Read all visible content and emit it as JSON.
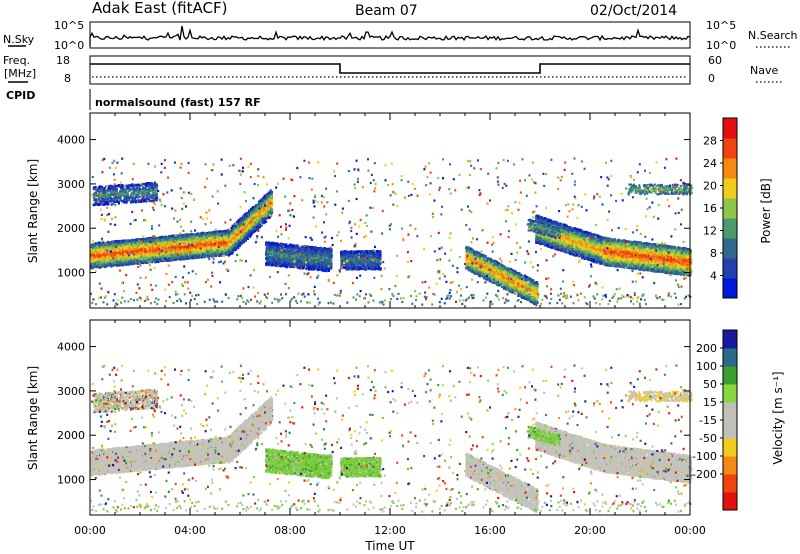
{
  "header": {
    "station": "Adak East (fitACF)",
    "beam": "Beam 07",
    "date": "02/Oct/2014"
  },
  "top_panels": {
    "nsky_label": "N.Sky",
    "nsky_ticks": [
      "10^5",
      "10^0"
    ],
    "nsearch_label": "N.Search",
    "nsearch_ticks": [
      "10^5",
      "10^0"
    ],
    "freq_label": "Freq.",
    "freq_unit": "[MHz]",
    "freq_ticks": [
      "18",
      "8"
    ],
    "nave_label": "Nave",
    "nave_ticks": [
      "60",
      "0"
    ],
    "cpid_label": "CPID",
    "cpid_text": "normalsound (fast) 157 RF"
  },
  "colors": {
    "power": [
      "#0018d8",
      "#2340b0",
      "#2f6a8e",
      "#4f9a6a",
      "#8fc64a",
      "#f2cc1a",
      "#f48a12",
      "#f04410",
      "#e41010"
    ],
    "velocity": [
      "#e41010",
      "#f04410",
      "#f48a12",
      "#f2cc1a",
      "#c0c0b8",
      "#c0c0b8",
      "#8ad640",
      "#3aa030",
      "#2a6a8a",
      "#1a1aa0"
    ]
  },
  "chart_data": [
    {
      "type": "heatmap",
      "title": "Power",
      "xlabel": "",
      "ylabel": "Slant Range [km]",
      "x_ticks": [
        "00:00",
        "04:00",
        "08:00",
        "12:00",
        "16:00",
        "20:00",
        "00:00"
      ],
      "y_ticks": [
        1000,
        2000,
        3000,
        4000
      ],
      "xlim": [
        0,
        24
      ],
      "ylim": [
        200,
        4600
      ],
      "colorbar": {
        "label": "Power [dB]",
        "ticks": [
          4,
          8,
          12,
          16,
          20,
          24,
          28
        ],
        "range": [
          0,
          32
        ]
      },
      "features": [
        {
          "t0": 0,
          "t1": 7.0,
          "range_start": 1300,
          "range_end": 2200,
          "level": "strong"
        },
        {
          "t0": 6.8,
          "t1": 9.6,
          "range_start": 1000,
          "range_end": 1900,
          "level": "weak"
        },
        {
          "t0": 10.0,
          "t1": 11.6,
          "range_start": 1000,
          "range_end": 1500,
          "level": "weak"
        },
        {
          "t0": 15.0,
          "t1": 17.8,
          "range_start": 1500,
          "range_end": 400,
          "level": "strong"
        },
        {
          "t0": 17.8,
          "t1": 24,
          "range_start": 2000,
          "range_end": 1200,
          "level": "strong"
        },
        {
          "t0": 0,
          "t1": 2.6,
          "range_start": 2700,
          "range_end": 2900,
          "level": "weak"
        },
        {
          "t0": 21.5,
          "t1": 24,
          "range_start": 2800,
          "range_end": 3000,
          "level": "weak"
        }
      ]
    },
    {
      "type": "heatmap",
      "title": "Velocity",
      "xlabel": "Time UT",
      "ylabel": "Slant Range [km]",
      "x_ticks": [
        "00:00",
        "04:00",
        "08:00",
        "12:00",
        "16:00",
        "20:00",
        "00:00"
      ],
      "y_ticks": [
        1000,
        2000,
        3000,
        4000
      ],
      "xlim": [
        0,
        24
      ],
      "ylim": [
        200,
        4600
      ],
      "colorbar": {
        "label": "Velocity [m s⁻¹]",
        "ticks": [
          200,
          100,
          50,
          15,
          -15,
          -50,
          -100,
          -200
        ],
        "range": [
          -250,
          250
        ]
      }
    }
  ]
}
